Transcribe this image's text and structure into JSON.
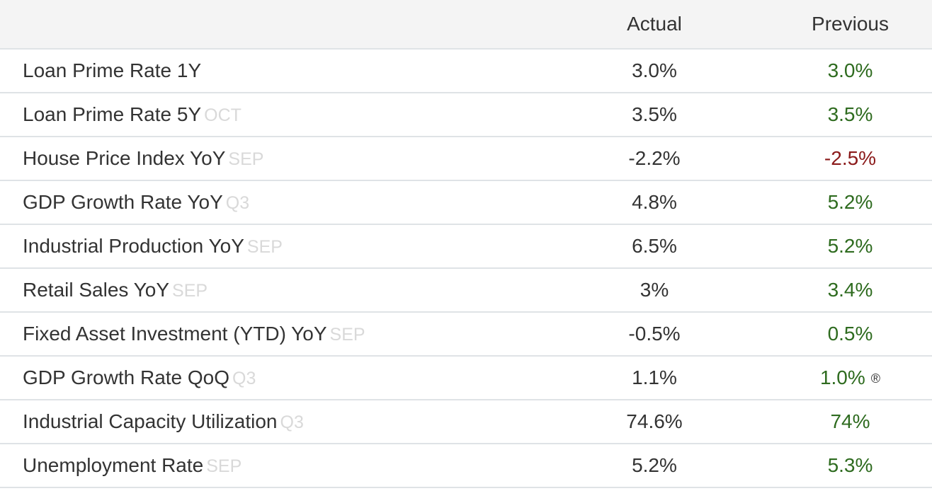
{
  "header": {
    "actual": "Actual",
    "previous": "Previous"
  },
  "colors": {
    "positive": "#2e6b1f",
    "negative": "#8b1a1a",
    "reference": "#d9d9d9"
  },
  "rows": [
    {
      "name": "Loan Prime Rate 1Y",
      "ref": "",
      "actual": "3.0%",
      "previous": "3.0%",
      "trend": "pos",
      "revised": ""
    },
    {
      "name": "Loan Prime Rate 5Y",
      "ref": "OCT",
      "actual": "3.5%",
      "previous": "3.5%",
      "trend": "pos",
      "revised": ""
    },
    {
      "name": "House Price Index YoY",
      "ref": "SEP",
      "actual": "-2.2%",
      "previous": "-2.5%",
      "trend": "neg",
      "revised": ""
    },
    {
      "name": "GDP Growth Rate YoY",
      "ref": "Q3",
      "actual": "4.8%",
      "previous": "5.2%",
      "trend": "pos",
      "revised": ""
    },
    {
      "name": "Industrial Production YoY",
      "ref": "SEP",
      "actual": "6.5%",
      "previous": "5.2%",
      "trend": "pos",
      "revised": ""
    },
    {
      "name": "Retail Sales YoY",
      "ref": "SEP",
      "actual": "3%",
      "previous": "3.4%",
      "trend": "pos",
      "revised": ""
    },
    {
      "name": "Fixed Asset Investment (YTD) YoY",
      "ref": "SEP",
      "actual": "-0.5%",
      "previous": "0.5%",
      "trend": "pos",
      "revised": ""
    },
    {
      "name": "GDP Growth Rate QoQ",
      "ref": "Q3",
      "actual": "1.1%",
      "previous": "1.0%",
      "trend": "pos",
      "revised": "®"
    },
    {
      "name": "Industrial Capacity Utilization",
      "ref": "Q3",
      "actual": "74.6%",
      "previous": "74%",
      "trend": "pos",
      "revised": ""
    },
    {
      "name": "Unemployment Rate",
      "ref": "SEP",
      "actual": "5.2%",
      "previous": "5.3%",
      "trend": "pos",
      "revised": ""
    }
  ]
}
